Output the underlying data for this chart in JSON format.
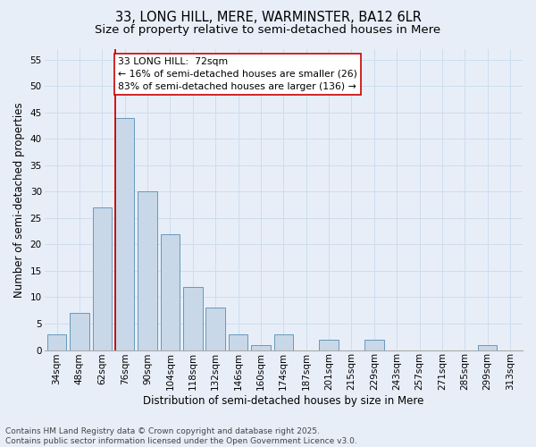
{
  "title_line1": "33, LONG HILL, MERE, WARMINSTER, BA12 6LR",
  "title_line2": "Size of property relative to semi-detached houses in Mere",
  "xlabel": "Distribution of semi-detached houses by size in Mere",
  "ylabel": "Number of semi-detached properties",
  "categories": [
    "34sqm",
    "48sqm",
    "62sqm",
    "76sqm",
    "90sqm",
    "104sqm",
    "118sqm",
    "132sqm",
    "146sqm",
    "160sqm",
    "174sqm",
    "187sqm",
    "201sqm",
    "215sqm",
    "229sqm",
    "243sqm",
    "257sqm",
    "271sqm",
    "285sqm",
    "299sqm",
    "313sqm"
  ],
  "values": [
    3,
    7,
    27,
    44,
    30,
    22,
    12,
    8,
    3,
    1,
    3,
    0,
    2,
    0,
    2,
    0,
    0,
    0,
    0,
    1,
    0
  ],
  "bar_color": "#c8d8e8",
  "bar_edge_color": "#6699bb",
  "bar_edge_width": 0.7,
  "grid_color": "#ccddee",
  "background_color": "#e8eef8",
  "annotation_line1": "33 LONG HILL:  72sqm",
  "annotation_line2": "← 16% of semi-detached houses are smaller (26)",
  "annotation_line3": "83% of semi-detached houses are larger (136) →",
  "annotation_box_facecolor": "#ffffff",
  "annotation_box_edgecolor": "#cc0000",
  "red_line_color": "#cc0000",
  "red_line_x": 2.575,
  "ylim_max": 57,
  "yticks": [
    0,
    5,
    10,
    15,
    20,
    25,
    30,
    35,
    40,
    45,
    50,
    55
  ],
  "footnote_line1": "Contains HM Land Registry data © Crown copyright and database right 2025.",
  "footnote_line2": "Contains public sector information licensed under the Open Government Licence v3.0.",
  "title_fontsize": 10.5,
  "subtitle_fontsize": 9.5,
  "axis_label_fontsize": 8.5,
  "tick_fontsize": 7.5,
  "annotation_fontsize": 7.8,
  "footnote_fontsize": 6.5
}
